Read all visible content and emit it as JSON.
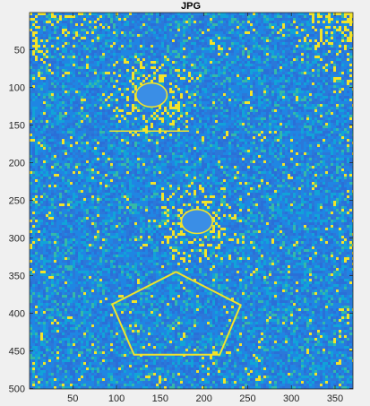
{
  "chart_data": {
    "type": "heatmap",
    "title": "JPG",
    "xlabel": "",
    "ylabel": "",
    "xlim": [
      0.5,
      370.5
    ],
    "ylim": [
      0.5,
      500.5
    ],
    "y_reversed": true,
    "xticks": [
      50,
      100,
      150,
      200,
      250,
      300,
      350
    ],
    "yticks": [
      50,
      100,
      150,
      200,
      250,
      300,
      350,
      400,
      450,
      500
    ],
    "grid": false,
    "colormap": [
      "#2a6fd8",
      "#1f86e3",
      "#11a3d8",
      "#35b9a7",
      "#f2e32a"
    ],
    "background_color": "#2b78d9",
    "features": {
      "circles": [
        {
          "center": [
            140,
            110
          ],
          "radius_x": 17,
          "radius_y": 15
        },
        {
          "center": [
            192,
            278
          ],
          "radius_x": 17,
          "radius_y": 15
        }
      ],
      "line": {
        "x": [
          92,
          183
        ],
        "y": [
          158,
          158
        ]
      },
      "pentagon": {
        "vertices": [
          [
            168,
            345
          ],
          [
            242,
            389
          ],
          [
            218,
            455
          ],
          [
            120,
            455
          ],
          [
            95,
            388
          ]
        ]
      },
      "colors": {
        "spot": "#3a8ee6",
        "halo": "#f2e32a",
        "outline": "#f2e32a"
      }
    }
  }
}
